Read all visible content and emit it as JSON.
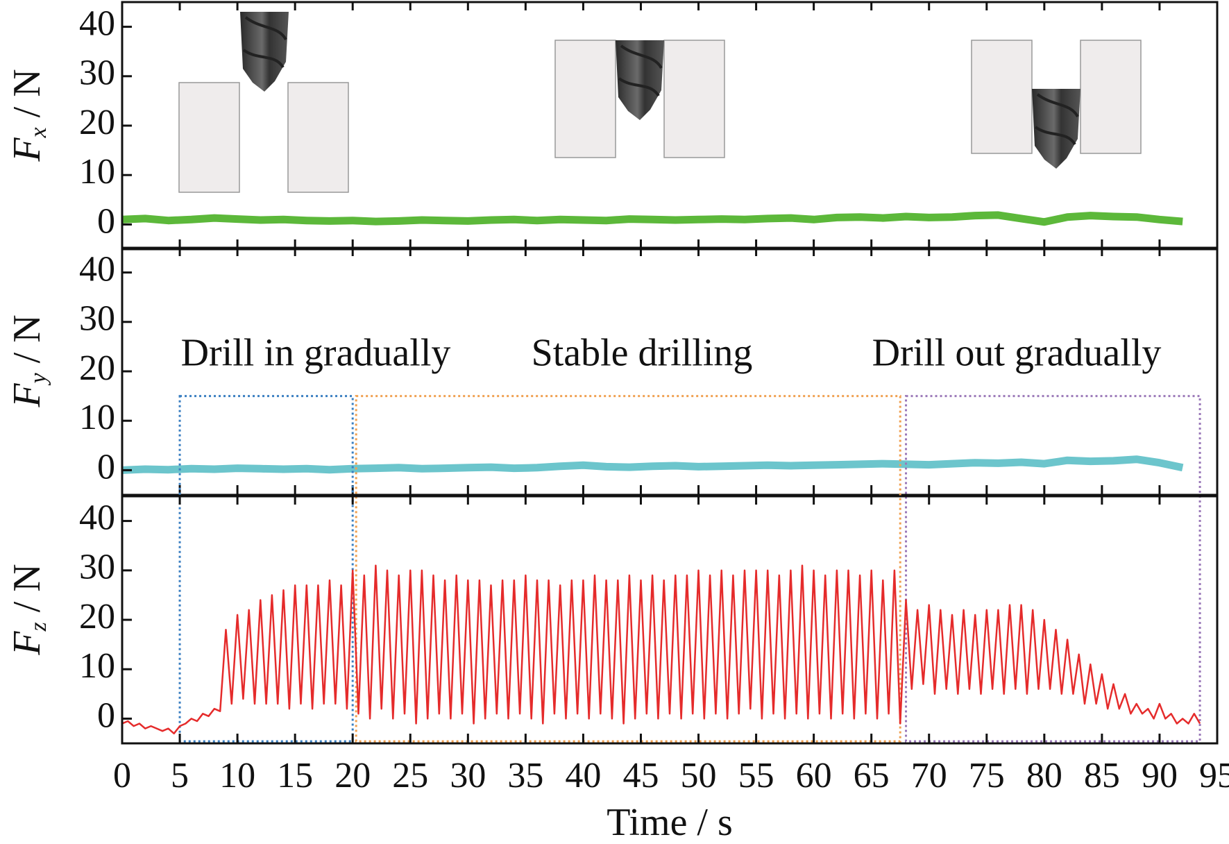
{
  "chart_data": [
    {
      "type": "line",
      "ylabel": [
        "F",
        "x",
        "/ N"
      ],
      "ylim": [
        -5,
        45
      ],
      "yticks": [
        0,
        10,
        20,
        30,
        40
      ],
      "x": [
        0,
        2,
        4,
        6,
        8,
        10,
        12,
        14,
        16,
        18,
        20,
        22,
        24,
        26,
        28,
        30,
        32,
        34,
        36,
        38,
        40,
        42,
        44,
        46,
        48,
        50,
        52,
        54,
        56,
        58,
        60,
        62,
        64,
        66,
        68,
        70,
        72,
        74,
        76,
        78,
        80,
        82,
        84,
        86,
        88,
        90,
        92
      ],
      "series": [
        {
          "name": "Fx",
          "color": "#5cb83a",
          "values": [
            1,
            1.2,
            0.8,
            1,
            1.3,
            1.1,
            0.9,
            1,
            0.8,
            0.7,
            0.8,
            0.6,
            0.7,
            0.9,
            0.8,
            0.7,
            0.9,
            1.0,
            0.8,
            1.0,
            0.9,
            0.8,
            1.1,
            1.0,
            0.9,
            1.0,
            1.1,
            1.0,
            1.2,
            1.3,
            1.0,
            1.4,
            1.5,
            1.3,
            1.6,
            1.4,
            1.5,
            1.8,
            1.9,
            1.2,
            0.5,
            1.5,
            1.8,
            1.6,
            1.5,
            1.0,
            0.6
          ]
        }
      ]
    },
    {
      "type": "line",
      "ylabel": [
        "F",
        "y",
        "/ N"
      ],
      "ylim": [
        -5,
        45
      ],
      "yticks": [
        0,
        10,
        20,
        30,
        40
      ],
      "x": [
        0,
        2,
        4,
        6,
        8,
        10,
        12,
        14,
        16,
        18,
        20,
        22,
        24,
        26,
        28,
        30,
        32,
        34,
        36,
        38,
        40,
        42,
        44,
        46,
        48,
        50,
        52,
        54,
        56,
        58,
        60,
        62,
        64,
        66,
        68,
        70,
        72,
        74,
        76,
        78,
        80,
        82,
        84,
        86,
        88,
        90,
        92
      ],
      "series": [
        {
          "name": "Fy",
          "color": "#6cc5cc",
          "values": [
            0,
            0.2,
            0.1,
            0.3,
            0.2,
            0.4,
            0.3,
            0.2,
            0.3,
            0.1,
            0.3,
            0.4,
            0.5,
            0.3,
            0.4,
            0.5,
            0.6,
            0.4,
            0.5,
            0.8,
            1.0,
            0.7,
            0.6,
            0.8,
            0.9,
            0.7,
            0.8,
            0.9,
            1.0,
            0.9,
            1.0,
            1.1,
            1.2,
            1.3,
            1.2,
            1.1,
            1.3,
            1.5,
            1.4,
            1.6,
            1.3,
            2.0,
            1.8,
            1.9,
            2.2,
            1.5,
            0.5
          ]
        }
      ],
      "annotations": [
        {
          "text": "Drill in gradually",
          "x0": 5,
          "x1": 20,
          "y": 15,
          "color": "#3a7fc1"
        },
        {
          "text": "Stable drilling",
          "x0": 20.3,
          "x1": 67.5,
          "y": 15,
          "color": "#f0a050"
        },
        {
          "text": "Drill out gradually",
          "x0": 68,
          "x1": 93.5,
          "y": 15,
          "color": "#9a78b8"
        }
      ]
    },
    {
      "type": "line",
      "ylabel": [
        "F",
        "z",
        "/ N"
      ],
      "ylim": [
        -5,
        45
      ],
      "yticks": [
        0,
        10,
        20,
        30,
        40
      ],
      "xlabel": "Time / s",
      "xlim": [
        0,
        95
      ],
      "xticks": [
        0,
        5,
        10,
        15,
        20,
        25,
        30,
        35,
        40,
        45,
        50,
        55,
        60,
        65,
        70,
        75,
        80,
        85,
        90,
        95
      ],
      "x": [
        0,
        0.5,
        1,
        1.5,
        2,
        2.5,
        3,
        3.5,
        4,
        4.5,
        5,
        5.5,
        6,
        6.5,
        7,
        7.5,
        8,
        8.5,
        9,
        9.5,
        10,
        10.5,
        11,
        11.5,
        12,
        12.5,
        13,
        13.5,
        14,
        14.5,
        15,
        15.5,
        16,
        16.5,
        17,
        17.5,
        18,
        18.5,
        19,
        19.5,
        20,
        20.5,
        21,
        21.5,
        22,
        22.5,
        23,
        23.5,
        24,
        24.5,
        25,
        25.5,
        26,
        26.5,
        27,
        27.5,
        28,
        28.5,
        29,
        29.5,
        30,
        30.5,
        31,
        31.5,
        32,
        32.5,
        33,
        33.5,
        34,
        34.5,
        35,
        35.5,
        36,
        36.5,
        37,
        37.5,
        38,
        38.5,
        39,
        39.5,
        40,
        40.5,
        41,
        41.5,
        42,
        42.5,
        43,
        43.5,
        44,
        44.5,
        45,
        45.5,
        46,
        46.5,
        47,
        47.5,
        48,
        48.5,
        49,
        49.5,
        50,
        50.5,
        51,
        51.5,
        52,
        52.5,
        53,
        53.5,
        54,
        54.5,
        55,
        55.5,
        56,
        56.5,
        57,
        57.5,
        58,
        58.5,
        59,
        59.5,
        60,
        60.5,
        61,
        61.5,
        62,
        62.5,
        63,
        63.5,
        64,
        64.5,
        65,
        65.5,
        66,
        66.5,
        67,
        67.5,
        68,
        68.5,
        69,
        69.5,
        70,
        70.5,
        71,
        71.5,
        72,
        72.5,
        73,
        73.5,
        74,
        74.5,
        75,
        75.5,
        76,
        76.5,
        77,
        77.5,
        78,
        78.5,
        79,
        79.5,
        80,
        80.5,
        81,
        81.5,
        82,
        82.5,
        83,
        83.5,
        84,
        84.5,
        85,
        85.5,
        86,
        86.5,
        87,
        87.5,
        88,
        88.5,
        89,
        89.5,
        90,
        90.5,
        91,
        91.5,
        92,
        92.5,
        93,
        93.5
      ],
      "series": [
        {
          "name": "Fz",
          "color": "#e52b2b",
          "values": [
            -1,
            -0.5,
            -1.5,
            -1,
            -2,
            -1.5,
            -2,
            -2.5,
            -2,
            -3,
            -1.5,
            -1,
            0,
            -0.5,
            1,
            0.5,
            2,
            1.5,
            18,
            3,
            21,
            4,
            22,
            3,
            24,
            3,
            25,
            3,
            26,
            2,
            27,
            3,
            27,
            2,
            27,
            3,
            28,
            3,
            27,
            2,
            30,
            1,
            29,
            0,
            31,
            2,
            30,
            0,
            29,
            1,
            30,
            -1,
            30,
            0,
            29,
            1,
            28,
            0,
            29,
            1,
            28,
            -1,
            28,
            0,
            27,
            1,
            28,
            0,
            28,
            1,
            29,
            0,
            28,
            -1,
            28,
            1,
            27,
            0,
            28,
            1,
            28,
            0,
            29,
            1,
            28,
            0,
            28,
            -1,
            29,
            0,
            28,
            1,
            29,
            0,
            28,
            1,
            29,
            0,
            29,
            1,
            30,
            0,
            29,
            1,
            30,
            0,
            29,
            1,
            30,
            2,
            30,
            0,
            30,
            1,
            29,
            0,
            30,
            1,
            31,
            0,
            30,
            1,
            29,
            0,
            30,
            1,
            30,
            0,
            29,
            1,
            30,
            0,
            28,
            1,
            30,
            -1,
            24,
            6,
            22,
            7,
            23,
            5,
            22,
            6,
            21,
            5,
            22,
            6,
            21,
            5,
            22,
            6,
            22,
            5,
            23,
            6,
            23,
            5,
            22,
            6,
            20,
            6,
            18,
            5,
            16,
            5,
            13,
            3,
            11,
            3,
            9,
            2,
            7,
            2,
            5,
            1,
            3,
            1,
            2,
            0,
            3,
            0,
            1,
            -1,
            0,
            -1,
            1,
            -1
          ]
        }
      ]
    }
  ]
}
